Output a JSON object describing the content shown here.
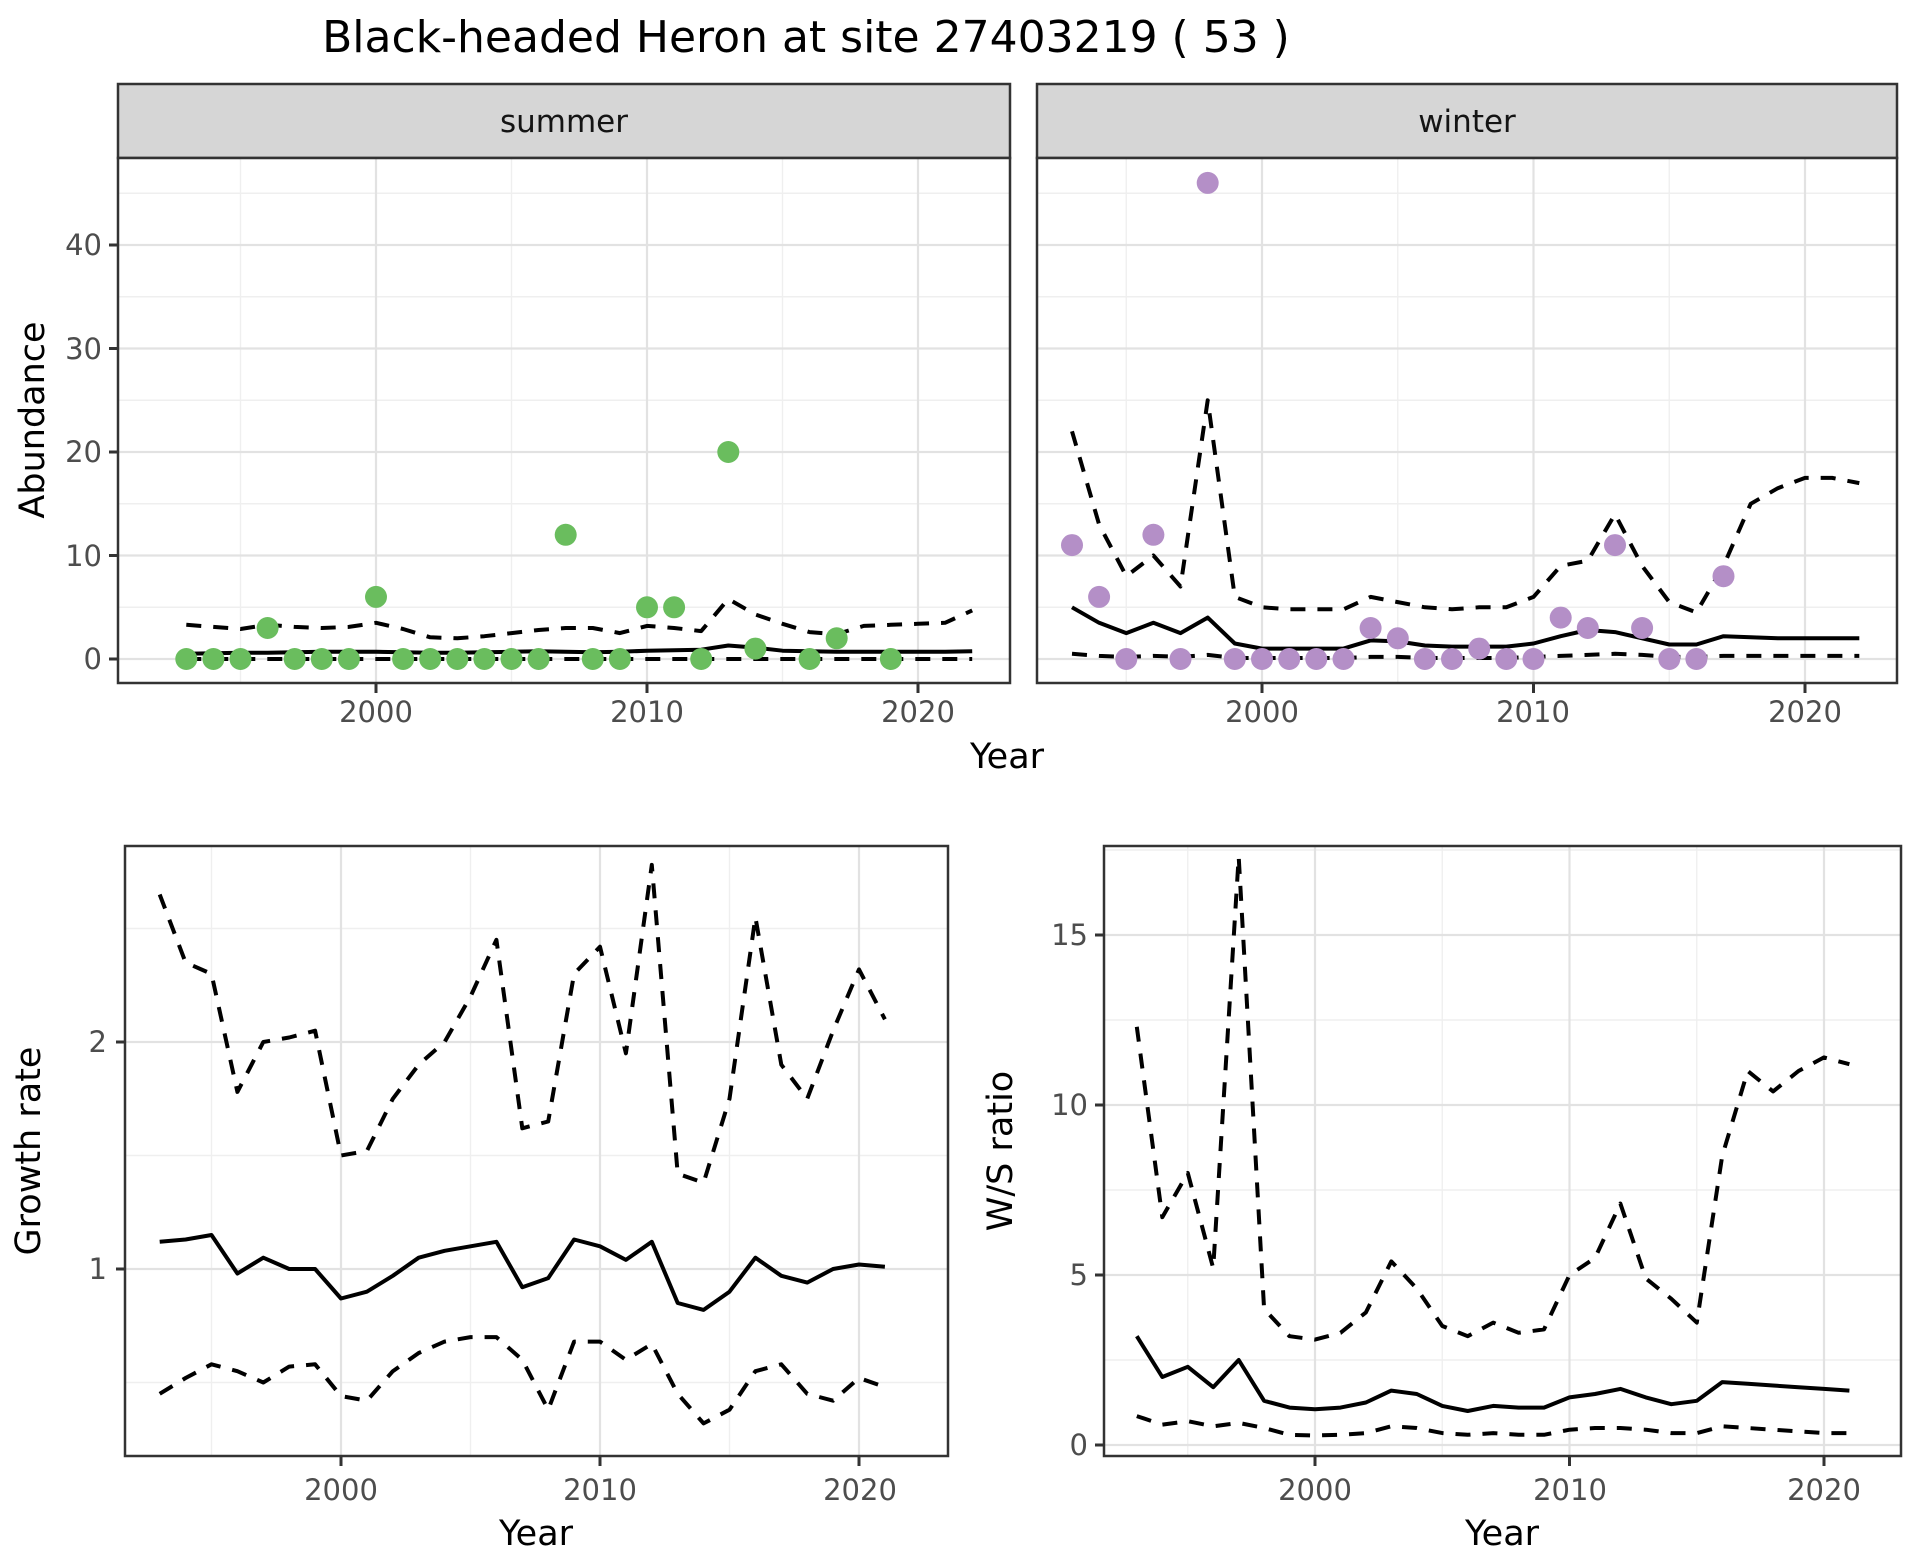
{
  "title": "Black-headed Heron at site 27403219 ( 53 )",
  "colors": {
    "summer_point": "#6ABD5E",
    "winter_point": "#B48FC7",
    "line": "#000000",
    "strip_bg": "#D6D6D6",
    "panel_border": "#333333",
    "grid_major": "#E2E2E2",
    "grid_minor": "#EFEFEF",
    "tick_label": "#4D4D4D"
  },
  "chart_data": [
    {
      "id": "summer-abundance",
      "type": "scatter",
      "facet_label": "summer",
      "xlabel": "Year",
      "ylabel": "Abundance",
      "x_ticks": [
        "2000",
        "2010",
        "2020"
      ],
      "y_ticks": [
        "0",
        "10",
        "20",
        "30",
        "40"
      ],
      "grid": {
        "x_major": [
          2000,
          2010,
          2020
        ],
        "x_minor": [
          1995,
          2005,
          2015
        ],
        "y_major": [
          0,
          10,
          20,
          30,
          40
        ],
        "y_minor": [
          5,
          15,
          25,
          35,
          45
        ]
      },
      "xlim": [
        1991.6,
        2023.4
      ],
      "ylim": [
        -2.2,
        48.2
      ],
      "point_color": "#6ABD5E",
      "points": {
        "years": [
          1993,
          1994,
          1995,
          1996,
          1997,
          1998,
          1999,
          2000,
          2001,
          2002,
          2003,
          2004,
          2005,
          2006,
          2007,
          2008,
          2009,
          2010,
          2011,
          2012,
          2013,
          2014,
          2016,
          2017,
          2019
        ],
        "values": [
          0,
          0,
          0,
          3,
          0,
          0,
          0,
          6,
          0,
          0,
          0,
          0,
          0,
          0,
          12,
          0,
          0,
          5,
          5,
          0,
          20,
          1,
          0,
          2,
          0
        ]
      },
      "lines": {
        "start_year": 1993,
        "fit": [
          0.5,
          0.55,
          0.6,
          0.6,
          0.65,
          0.7,
          0.7,
          0.7,
          0.65,
          0.6,
          0.6,
          0.65,
          0.7,
          0.75,
          0.7,
          0.65,
          0.7,
          0.8,
          0.85,
          0.9,
          1.3,
          1.1,
          0.8,
          0.75,
          0.7,
          0.7,
          0.7,
          0.7,
          0.7,
          0.75
        ],
        "upper": [
          3.3,
          3.1,
          2.9,
          3.3,
          3.1,
          3.0,
          3.1,
          3.5,
          2.9,
          2.1,
          2.0,
          2.2,
          2.5,
          2.8,
          3.0,
          3.0,
          2.5,
          3.2,
          3.0,
          2.7,
          5.8,
          4.3,
          3.4,
          2.6,
          2.4,
          3.2,
          3.3,
          3.4,
          3.5,
          4.7
        ],
        "lower": [
          0,
          0,
          0,
          0,
          0,
          0,
          0,
          0,
          0,
          0,
          0,
          0,
          0,
          0,
          0,
          0,
          0,
          0,
          0,
          0,
          0,
          0,
          0,
          0,
          0,
          0,
          0,
          0,
          0,
          0
        ]
      }
    },
    {
      "id": "winter-abundance",
      "type": "scatter",
      "facet_label": "winter",
      "xlabel": "Year",
      "ylabel": "",
      "x_ticks": [
        "2000",
        "2010",
        "2020"
      ],
      "y_ticks": [],
      "grid": {
        "x_major": [
          2000,
          2010,
          2020
        ],
        "x_minor": [
          1995,
          2005,
          2015
        ],
        "y_major": [
          0,
          10,
          20,
          30,
          40
        ],
        "y_minor": [
          5,
          15,
          25,
          35,
          45
        ]
      },
      "xlim": [
        1991.6,
        2023.4
      ],
      "ylim": [
        -2.2,
        48.2
      ],
      "point_color": "#B48FC7",
      "points": {
        "years": [
          1993,
          1994,
          1995,
          1996,
          1997,
          1998,
          1999,
          2000,
          2001,
          2002,
          2003,
          2004,
          2005,
          2006,
          2007,
          2008,
          2009,
          2010,
          2011,
          2012,
          2013,
          2014,
          2015,
          2016,
          2017
        ],
        "values": [
          11,
          6,
          0,
          12,
          0,
          46,
          0,
          0,
          0,
          0,
          0,
          3,
          2,
          0,
          0,
          1,
          0,
          0,
          4,
          3,
          11,
          3,
          0,
          0,
          8
        ]
      },
      "lines": {
        "start_year": 1993,
        "fit": [
          5.0,
          3.5,
          2.5,
          3.5,
          2.5,
          4.0,
          1.5,
          1.0,
          1.0,
          1.0,
          1.0,
          1.8,
          1.7,
          1.3,
          1.2,
          1.2,
          1.2,
          1.5,
          2.2,
          2.8,
          2.6,
          2.0,
          1.4,
          1.4,
          2.2,
          2.1,
          2.0,
          2.0,
          2.0,
          2.0
        ],
        "upper": [
          22,
          13,
          8,
          10,
          7,
          25,
          6,
          5,
          4.8,
          4.8,
          4.8,
          6,
          5.5,
          5,
          4.8,
          5,
          5,
          6,
          9,
          9.5,
          14,
          9,
          5.5,
          4.5,
          9,
          15,
          16.5,
          17.5,
          17.5,
          17
        ],
        "lower": [
          0.5,
          0.3,
          0.2,
          0.3,
          0.2,
          0.4,
          0.1,
          0.1,
          0.1,
          0.1,
          0.1,
          0.2,
          0.2,
          0.1,
          0.1,
          0.1,
          0.1,
          0.2,
          0.3,
          0.4,
          0.5,
          0.4,
          0.2,
          0.2,
          0.3,
          0.3,
          0.3,
          0.3,
          0.3,
          0.3
        ]
      }
    },
    {
      "id": "growth-rate",
      "type": "line",
      "facet_label": "",
      "xlabel": "Year",
      "ylabel": "Growth rate",
      "x_ticks": [
        "2000",
        "2010",
        "2020"
      ],
      "y_ticks": [
        "1",
        "2"
      ],
      "grid": {
        "x_major": [
          2000,
          2010,
          2020
        ],
        "x_minor": [
          1995,
          2005,
          2015
        ],
        "y_major": [
          1,
          2
        ],
        "y_minor": [
          0.5,
          1.5,
          2.5
        ]
      },
      "xlim": [
        1991.7,
        2023.4
      ],
      "ylim": [
        0.18,
        2.87
      ],
      "lines": {
        "start_year": 1993,
        "fit": [
          1.12,
          1.13,
          1.15,
          0.98,
          1.05,
          1.0,
          1.0,
          0.87,
          0.9,
          0.97,
          1.05,
          1.08,
          1.1,
          1.12,
          0.92,
          0.96,
          1.13,
          1.1,
          1.04,
          1.12,
          0.85,
          0.82,
          0.9,
          1.05,
          0.97,
          0.94,
          1.0,
          1.02,
          1.01
        ],
        "upper": [
          2.65,
          2.35,
          2.3,
          1.78,
          2.0,
          2.02,
          2.05,
          1.5,
          1.52,
          1.75,
          1.9,
          2.0,
          2.2,
          2.45,
          1.62,
          1.65,
          2.3,
          2.42,
          1.95,
          2.78,
          1.42,
          1.38,
          1.75,
          2.55,
          1.9,
          1.75,
          2.05,
          2.32,
          2.1
        ],
        "lower": [
          0.45,
          0.52,
          0.58,
          0.55,
          0.5,
          0.57,
          0.58,
          0.44,
          0.42,
          0.55,
          0.63,
          0.68,
          0.7,
          0.7,
          0.6,
          0.38,
          0.68,
          0.68,
          0.6,
          0.67,
          0.45,
          0.32,
          0.38,
          0.55,
          0.58,
          0.45,
          0.42,
          0.52,
          0.48
        ]
      }
    },
    {
      "id": "ws-ratio",
      "type": "line",
      "facet_label": "",
      "xlabel": "Year",
      "ylabel": "W/S ratio",
      "x_ticks": [
        "2000",
        "2010",
        "2020"
      ],
      "y_ticks": [
        "0",
        "5",
        "10",
        "15"
      ],
      "grid": {
        "x_major": [
          2000,
          2010,
          2020
        ],
        "x_minor": [
          1995,
          2005,
          2015
        ],
        "y_major": [
          0,
          5,
          10,
          15
        ],
        "y_minor": [
          2.5,
          7.5,
          12.5,
          17.5
        ]
      },
      "xlim": [
        1991.7,
        2023.4
      ],
      "ylim": [
        -0.3,
        17.6
      ],
      "lines": {
        "start_year": 1993,
        "fit": [
          3.2,
          2.0,
          2.3,
          1.7,
          2.5,
          1.3,
          1.1,
          1.05,
          1.1,
          1.25,
          1.6,
          1.5,
          1.15,
          1.0,
          1.15,
          1.1,
          1.1,
          1.4,
          1.5,
          1.65,
          1.4,
          1.2,
          1.3,
          1.85,
          1.8,
          1.75,
          1.7,
          1.65,
          1.6
        ],
        "upper": [
          12.3,
          6.7,
          8.0,
          5.2,
          17.3,
          4.0,
          3.2,
          3.1,
          3.3,
          3.9,
          5.4,
          4.6,
          3.5,
          3.2,
          3.6,
          3.3,
          3.4,
          5.0,
          5.5,
          7.1,
          4.9,
          4.3,
          3.6,
          8.5,
          11.0,
          10.4,
          11.0,
          11.4,
          11.2
        ],
        "lower": [
          0.85,
          0.6,
          0.7,
          0.55,
          0.65,
          0.5,
          0.3,
          0.28,
          0.3,
          0.35,
          0.55,
          0.5,
          0.35,
          0.3,
          0.35,
          0.3,
          0.3,
          0.45,
          0.5,
          0.5,
          0.45,
          0.35,
          0.35,
          0.55,
          0.5,
          0.45,
          0.4,
          0.35,
          0.35
        ]
      }
    }
  ]
}
